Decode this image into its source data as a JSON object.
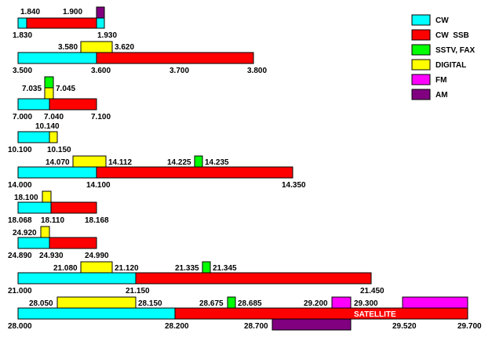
{
  "colors": {
    "cw": "#00ffff",
    "cw_ssb": "#ff0000",
    "sstv_fax": "#00ff00",
    "digital": "#ffff00",
    "fm": "#ff00ff",
    "am": "#800080"
  },
  "legend": [
    {
      "key": "cw",
      "label": "CW"
    },
    {
      "key": "cw_ssb",
      "label": "CW  SSB"
    },
    {
      "key": "sstv_fax",
      "label": "SSTV, FAX"
    },
    {
      "key": "digital",
      "label": "DIGITAL"
    },
    {
      "key": "fm",
      "label": "FM"
    },
    {
      "key": "am",
      "label": "AM"
    }
  ],
  "bands": [
    {
      "segments": [
        {
          "mode": "cw",
          "start": 1.83,
          "end": 1.84
        },
        {
          "mode": "cw_ssb",
          "start": 1.84,
          "end": 1.93
        },
        {
          "mode": "cw",
          "start": 1.93,
          "end": 1.94
        }
      ],
      "extra": [
        {
          "mode": "am",
          "start": 1.93,
          "end": 1.94
        }
      ],
      "labels": {
        "below": [
          "1.830",
          "1.930"
        ],
        "above": [
          "1.840",
          "1.900"
        ]
      }
    },
    {
      "segments": [
        {
          "mode": "cw",
          "start": 3.5,
          "end": 3.6
        },
        {
          "mode": "cw_ssb",
          "start": 3.6,
          "end": 3.8
        }
      ],
      "extra": [
        {
          "mode": "digital",
          "start": 3.58,
          "end": 3.62
        }
      ],
      "labels": {
        "below": [
          "3.500",
          "3.600",
          "3.700",
          "3.800"
        ],
        "above": [
          "3.580",
          "3.620"
        ]
      }
    },
    {
      "segments": [
        {
          "mode": "cw",
          "start": 7.0,
          "end": 7.04
        },
        {
          "mode": "cw_ssb",
          "start": 7.04,
          "end": 7.1
        }
      ],
      "extra": [
        {
          "mode": "sstv_fax",
          "start": 7.035,
          "end": 7.045
        },
        {
          "mode": "digital",
          "start": 7.035,
          "end": 7.045
        }
      ],
      "labels": {
        "below": [
          "7.000",
          "7.040",
          "7.100"
        ],
        "above": [
          "7.035",
          "7.045"
        ]
      }
    },
    {
      "segments": [
        {
          "mode": "cw",
          "start": 10.1,
          "end": 10.14
        },
        {
          "mode": "digital",
          "start": 10.14,
          "end": 10.15
        }
      ],
      "extra": [],
      "labels": {
        "below": [
          "10.100",
          "10.150"
        ],
        "above": [
          "10.140"
        ]
      }
    },
    {
      "segments": [
        {
          "mode": "cw",
          "start": 14.0,
          "end": 14.1
        },
        {
          "mode": "cw_ssb",
          "start": 14.1,
          "end": 14.35
        }
      ],
      "extra": [
        {
          "mode": "digital",
          "start": 14.07,
          "end": 14.112
        },
        {
          "mode": "sstv_fax",
          "start": 14.225,
          "end": 14.235
        }
      ],
      "labels": {
        "below": [
          "14.000",
          "14.100",
          "14.350"
        ],
        "above": [
          "14.070",
          "14.112",
          "14.225",
          "14.235"
        ]
      }
    },
    {
      "segments": [
        {
          "mode": "cw",
          "start": 18.068,
          "end": 18.11
        },
        {
          "mode": "cw_ssb",
          "start": 18.11,
          "end": 18.168
        }
      ],
      "extra": [
        {
          "mode": "digital",
          "start": 18.1,
          "end": 18.11
        }
      ],
      "labels": {
        "below": [
          "18.068",
          "18.110",
          "18.168"
        ],
        "above": [
          "18.100"
        ]
      }
    },
    {
      "segments": [
        {
          "mode": "cw",
          "start": 24.89,
          "end": 24.93
        },
        {
          "mode": "cw_ssb",
          "start": 24.93,
          "end": 24.99
        }
      ],
      "extra": [
        {
          "mode": "digital",
          "start": 24.92,
          "end": 24.93
        }
      ],
      "labels": {
        "below": [
          "24.890",
          "24.930",
          "24.990"
        ],
        "above": [
          "24.920"
        ]
      }
    },
    {
      "segments": [
        {
          "mode": "cw",
          "start": 21.0,
          "end": 21.15
        },
        {
          "mode": "cw_ssb",
          "start": 21.15,
          "end": 21.45
        }
      ],
      "extra": [
        {
          "mode": "digital",
          "start": 21.08,
          "end": 21.12
        },
        {
          "mode": "sstv_fax",
          "start": 21.335,
          "end": 21.345
        }
      ],
      "labels": {
        "below": [
          "21.000",
          "21.150",
          "21.450"
        ],
        "above": [
          "21.080",
          "21.120",
          "21.335",
          "21.345"
        ]
      }
    },
    {
      "segments": [
        {
          "mode": "cw",
          "start": 28.0,
          "end": 28.2
        },
        {
          "mode": "cw_ssb",
          "start": 28.2,
          "end": 29.7
        }
      ],
      "extra": [
        {
          "mode": "digital",
          "start": 28.05,
          "end": 28.15
        },
        {
          "mode": "sstv_fax",
          "start": 28.675,
          "end": 28.685
        },
        {
          "mode": "fm",
          "start": 29.2,
          "end": 29.3
        },
        {
          "mode": "fm",
          "start": 29.52,
          "end": 29.7
        },
        {
          "mode": "am",
          "start": 28.7,
          "end": 29.2
        }
      ],
      "labels": {
        "below": [
          "28.000",
          "28.200",
          "28.700",
          "29.520",
          "29.700"
        ],
        "above": [
          "28.050",
          "28.150",
          "28.675",
          "28.685",
          "29.200",
          "29.300"
        ]
      },
      "note": "SATELLITE"
    }
  ]
}
